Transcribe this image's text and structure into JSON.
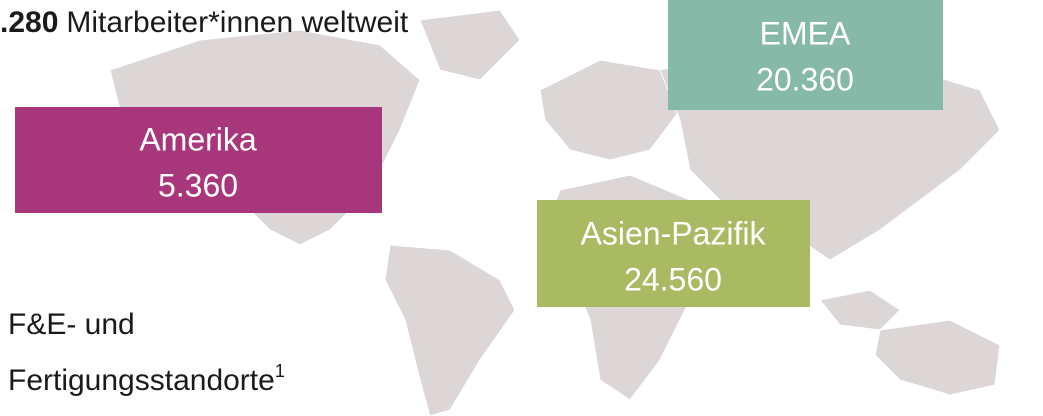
{
  "header": {
    "total": ".280",
    "text": "Mitarbeiter*innen weltweit"
  },
  "regions": [
    {
      "name": "EMEA",
      "count": "20.360",
      "color": "#86b9a8"
    },
    {
      "name": "Amerika",
      "count": "5.360",
      "color": "#a8367a"
    },
    {
      "name": "Asien-Pazifik",
      "count": "24.560",
      "color": "#a9ba63"
    }
  ],
  "footer": {
    "line1": "F&E- und",
    "line2": "Fertigungsstandorte",
    "note": "1"
  }
}
